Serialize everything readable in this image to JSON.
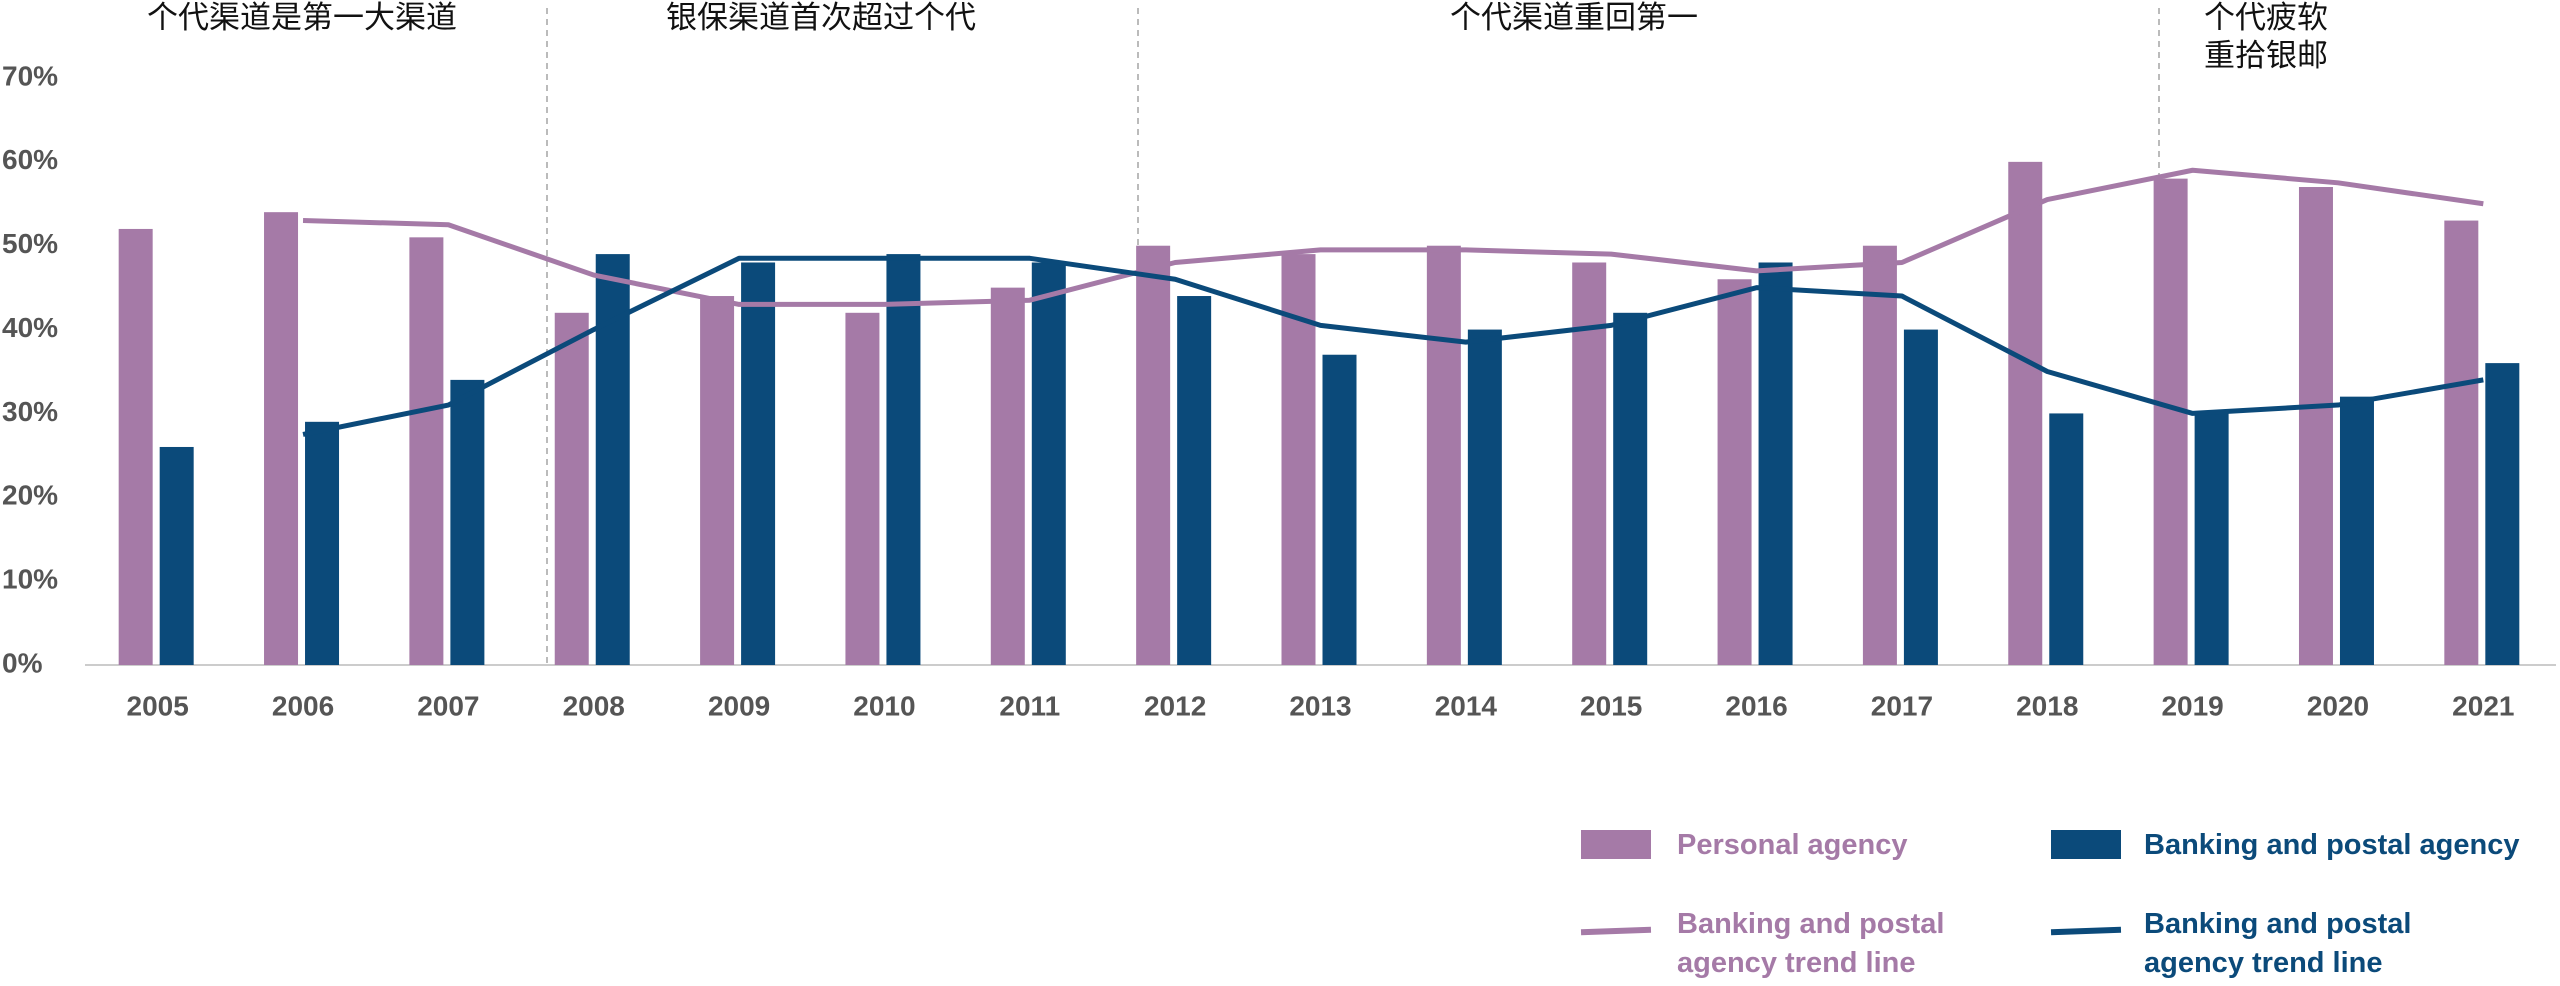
{
  "chart_data": {
    "type": "bar",
    "annotations": [
      [
        "个代渠道是第一大渠道"
      ],
      [
        "银保渠道首次超过个代"
      ],
      [
        "个代渠道重回第一"
      ],
      [
        "个代疲软",
        "重拾银邮"
      ]
    ],
    "categories": [
      "2005",
      "2006",
      "2007",
      "2008",
      "2009",
      "2010",
      "2011",
      "2012",
      "2013",
      "2014",
      "2015",
      "2016",
      "2017",
      "2018",
      "2019",
      "2020",
      "2021"
    ],
    "series": [
      {
        "name": "Personal agency",
        "kind": "bar",
        "color": "#a57aa7",
        "values": [
          52,
          54,
          51,
          42,
          44,
          42,
          45,
          50,
          49,
          50,
          48,
          46,
          50,
          60,
          58,
          57,
          53
        ]
      },
      {
        "name": "Banking and postal agency",
        "kind": "bar",
        "color": "#0b4a7a",
        "values": [
          26,
          29,
          34,
          49,
          48,
          49,
          48,
          44,
          37,
          40,
          42,
          48,
          40,
          30,
          30,
          32,
          36
        ]
      },
      {
        "name": "Banking and postal agency trend line",
        "kind": "line",
        "color": "#a57aa7",
        "values": [
          null,
          53,
          52.5,
          46.5,
          43,
          43,
          43.5,
          48,
          49.5,
          49.5,
          49,
          47,
          48,
          55.5,
          59,
          57.5,
          55
        ]
      },
      {
        "name": "Banking and postal agency trend line",
        "kind": "line",
        "color": "#0b4a7a",
        "values": [
          null,
          27.5,
          31,
          40,
          48.5,
          48.5,
          48.5,
          46,
          40.5,
          38.5,
          40.5,
          45,
          44,
          35,
          30,
          31,
          34
        ]
      }
    ],
    "ylim": [
      0,
      70
    ],
    "yticks": [
      {
        "value": 0,
        "label": "0%"
      },
      {
        "value": 10,
        "label": "10%"
      },
      {
        "value": 20,
        "label": "20%"
      },
      {
        "value": 30,
        "label": "30%"
      },
      {
        "value": 40,
        "label": "40%"
      },
      {
        "value": 50,
        "label": "50%"
      },
      {
        "value": 60,
        "label": "60%"
      },
      {
        "value": 70,
        "label": "70%"
      }
    ],
    "grid": false
  }
}
